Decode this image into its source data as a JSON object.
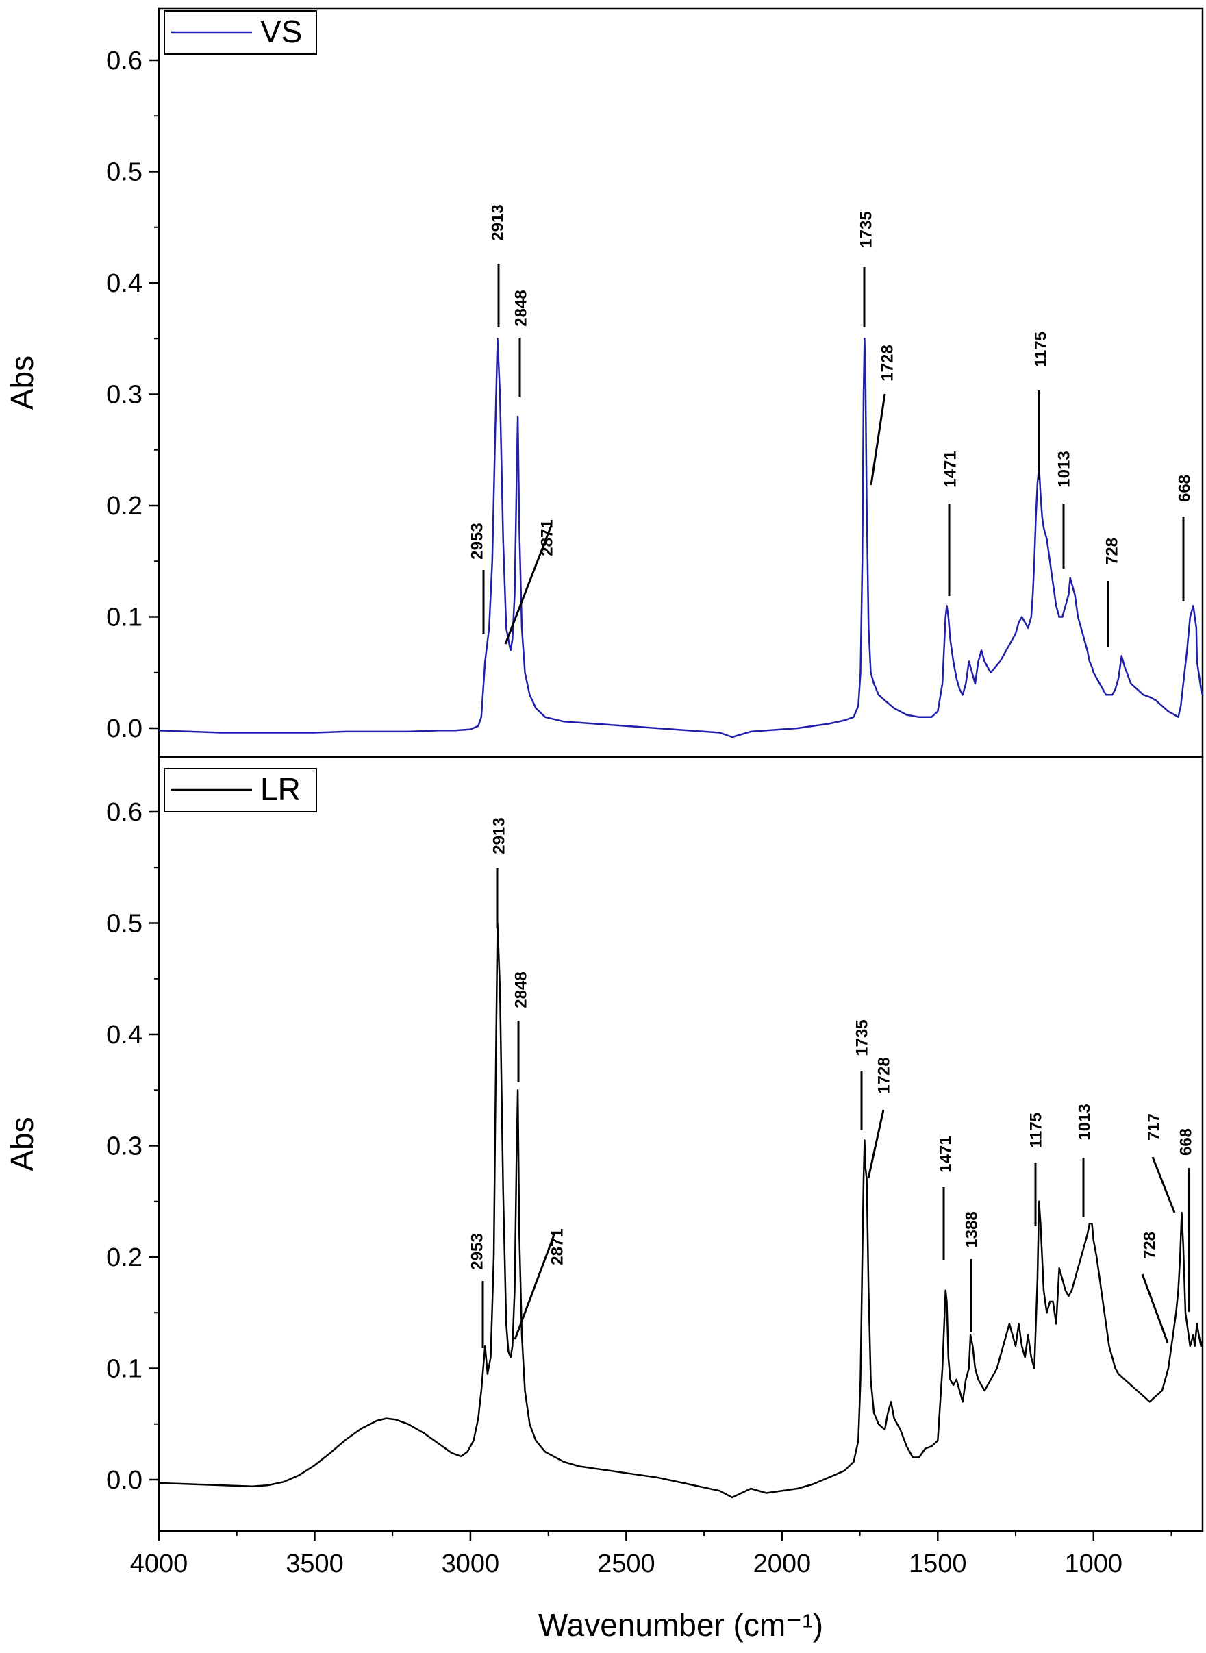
{
  "chart_data": [
    {
      "type": "line",
      "xlabel": "",
      "ylabel": "Abs",
      "xlim": [
        4000,
        650
      ],
      "ylim": [
        -0.03,
        0.65
      ],
      "x_reversed": true,
      "x_ticks": [],
      "y_ticks": [
        "0.0",
        "0.1",
        "0.2",
        "0.3",
        "0.4",
        "0.5",
        "0.6"
      ],
      "legend": "top-left",
      "series": [
        {
          "name": "VS",
          "color": "#1f1fa8",
          "x": [
            4000,
            3900,
            3800,
            3700,
            3600,
            3500,
            3400,
            3300,
            3200,
            3100,
            3050,
            3000,
            2975,
            2965,
            2953,
            2940,
            2930,
            2920,
            2913,
            2905,
            2895,
            2885,
            2875,
            2871,
            2865,
            2858,
            2852,
            2848,
            2843,
            2835,
            2825,
            2810,
            2790,
            2760,
            2700,
            2600,
            2500,
            2400,
            2350,
            2300,
            2200,
            2160,
            2100,
            2000,
            1950,
            1900,
            1850,
            1800,
            1770,
            1755,
            1748,
            1742,
            1738,
            1735,
            1732,
            1728,
            1722,
            1715,
            1705,
            1690,
            1670,
            1640,
            1600,
            1560,
            1520,
            1500,
            1485,
            1475,
            1471,
            1466,
            1460,
            1450,
            1440,
            1430,
            1420,
            1410,
            1400,
            1390,
            1380,
            1370,
            1360,
            1350,
            1330,
            1300,
            1280,
            1260,
            1250,
            1240,
            1230,
            1220,
            1210,
            1200,
            1195,
            1190,
            1185,
            1180,
            1175,
            1170,
            1165,
            1160,
            1150,
            1140,
            1130,
            1120,
            1110,
            1100,
            1090,
            1080,
            1075,
            1070,
            1060,
            1050,
            1040,
            1030,
            1020,
            1013,
            1005,
            1000,
            990,
            980,
            970,
            960,
            950,
            940,
            930,
            920,
            910,
            900,
            880,
            860,
            840,
            820,
            800,
            780,
            760,
            740,
            728,
            720,
            712,
            700,
            690,
            680,
            670,
            668,
            660,
            655,
            650
          ],
          "y": [
            -0.002,
            -0.003,
            -0.004,
            -0.004,
            -0.004,
            -0.004,
            -0.003,
            -0.003,
            -0.003,
            -0.002,
            -0.002,
            -0.001,
            0.002,
            0.01,
            0.06,
            0.09,
            0.15,
            0.27,
            0.35,
            0.3,
            0.17,
            0.09,
            0.075,
            0.07,
            0.08,
            0.12,
            0.22,
            0.28,
            0.18,
            0.09,
            0.05,
            0.03,
            0.018,
            0.01,
            0.006,
            0.004,
            0.002,
            0.0,
            -0.001,
            -0.002,
            -0.004,
            -0.008,
            -0.003,
            -0.001,
            0.0,
            0.002,
            0.004,
            0.007,
            0.01,
            0.02,
            0.05,
            0.15,
            0.3,
            0.35,
            0.31,
            0.2,
            0.09,
            0.05,
            0.04,
            0.03,
            0.025,
            0.018,
            0.012,
            0.01,
            0.01,
            0.015,
            0.04,
            0.1,
            0.11,
            0.1,
            0.08,
            0.06,
            0.045,
            0.035,
            0.03,
            0.04,
            0.06,
            0.05,
            0.04,
            0.06,
            0.07,
            0.06,
            0.05,
            0.06,
            0.07,
            0.08,
            0.085,
            0.095,
            0.1,
            0.095,
            0.09,
            0.1,
            0.12,
            0.15,
            0.19,
            0.22,
            0.235,
            0.21,
            0.19,
            0.18,
            0.17,
            0.15,
            0.13,
            0.11,
            0.1,
            0.1,
            0.11,
            0.12,
            0.135,
            0.13,
            0.12,
            0.1,
            0.09,
            0.08,
            0.07,
            0.06,
            0.055,
            0.05,
            0.045,
            0.04,
            0.035,
            0.03,
            0.03,
            0.03,
            0.035,
            0.045,
            0.065,
            0.055,
            0.04,
            0.035,
            0.03,
            0.028,
            0.025,
            0.02,
            0.015,
            0.012,
            0.01,
            0.02,
            0.04,
            0.07,
            0.1,
            0.11,
            0.09,
            0.06,
            0.045,
            0.035,
            0.03
          ],
          "peak_labels": [
            "2953",
            "2913",
            "2871",
            "2848",
            "1735",
            "1728",
            "1471",
            "1175",
            "1013",
            "728",
            "668"
          ]
        }
      ]
    },
    {
      "type": "line",
      "xlabel": "Wavenumber (cm⁻¹)",
      "ylabel": "Abs",
      "xlim": [
        4000,
        650
      ],
      "ylim": [
        -0.045,
        0.67
      ],
      "x_reversed": true,
      "x_ticks": [
        "4000",
        "3500",
        "3000",
        "2500",
        "2000",
        "1500",
        "1000"
      ],
      "y_ticks": [
        "0.0",
        "0.1",
        "0.2",
        "0.3",
        "0.4",
        "0.5",
        "0.6"
      ],
      "legend": "top-left",
      "series": [
        {
          "name": "LR",
          "color": "#000000",
          "x": [
            4000,
            3900,
            3800,
            3700,
            3650,
            3600,
            3550,
            3500,
            3450,
            3400,
            3350,
            3300,
            3270,
            3240,
            3200,
            3150,
            3100,
            3060,
            3030,
            3010,
            2990,
            2975,
            2965,
            2953,
            2945,
            2935,
            2925,
            2918,
            2913,
            2905,
            2895,
            2885,
            2878,
            2871,
            2865,
            2858,
            2852,
            2848,
            2843,
            2835,
            2825,
            2810,
            2790,
            2760,
            2700,
            2650,
            2600,
            2500,
            2400,
            2300,
            2200,
            2160,
            2100,
            2050,
            2000,
            1950,
            1900,
            1850,
            1800,
            1770,
            1755,
            1748,
            1742,
            1738,
            1735,
            1732,
            1728,
            1722,
            1715,
            1705,
            1690,
            1670,
            1660,
            1650,
            1640,
            1620,
            1600,
            1580,
            1560,
            1540,
            1520,
            1500,
            1485,
            1475,
            1471,
            1466,
            1460,
            1450,
            1440,
            1430,
            1420,
            1410,
            1400,
            1395,
            1388,
            1380,
            1370,
            1360,
            1350,
            1330,
            1310,
            1290,
            1270,
            1260,
            1250,
            1240,
            1230,
            1220,
            1210,
            1200,
            1190,
            1185,
            1180,
            1175,
            1170,
            1165,
            1160,
            1150,
            1140,
            1130,
            1120,
            1110,
            1100,
            1090,
            1080,
            1070,
            1060,
            1050,
            1040,
            1030,
            1020,
            1013,
            1005,
            1000,
            990,
            980,
            970,
            960,
            950,
            940,
            930,
            920,
            900,
            880,
            860,
            840,
            820,
            800,
            780,
            760,
            745,
            735,
            728,
            722,
            717,
            712,
            705,
            700,
            690,
            680,
            675,
            668,
            662,
            655,
            650
          ],
          "y": [
            -0.003,
            -0.004,
            -0.005,
            -0.006,
            -0.005,
            -0.002,
            0.004,
            0.013,
            0.024,
            0.036,
            0.046,
            0.053,
            0.055,
            0.054,
            0.05,
            0.042,
            0.032,
            0.024,
            0.021,
            0.025,
            0.035,
            0.055,
            0.08,
            0.12,
            0.095,
            0.11,
            0.2,
            0.38,
            0.5,
            0.44,
            0.26,
            0.14,
            0.115,
            0.11,
            0.12,
            0.17,
            0.29,
            0.35,
            0.22,
            0.13,
            0.08,
            0.05,
            0.035,
            0.025,
            0.016,
            0.012,
            0.01,
            0.006,
            0.002,
            -0.004,
            -0.01,
            -0.016,
            -0.008,
            -0.012,
            -0.01,
            -0.008,
            -0.004,
            0.002,
            0.008,
            0.016,
            0.035,
            0.09,
            0.2,
            0.27,
            0.305,
            0.28,
            0.27,
            0.17,
            0.09,
            0.06,
            0.05,
            0.045,
            0.06,
            0.07,
            0.055,
            0.045,
            0.03,
            0.02,
            0.02,
            0.028,
            0.03,
            0.035,
            0.1,
            0.17,
            0.16,
            0.11,
            0.09,
            0.085,
            0.09,
            0.08,
            0.07,
            0.09,
            0.1,
            0.13,
            0.12,
            0.1,
            0.09,
            0.085,
            0.08,
            0.09,
            0.1,
            0.12,
            0.14,
            0.13,
            0.12,
            0.14,
            0.12,
            0.11,
            0.13,
            0.11,
            0.1,
            0.14,
            0.18,
            0.25,
            0.23,
            0.2,
            0.17,
            0.15,
            0.16,
            0.16,
            0.14,
            0.19,
            0.18,
            0.17,
            0.165,
            0.17,
            0.18,
            0.19,
            0.2,
            0.21,
            0.22,
            0.23,
            0.23,
            0.215,
            0.2,
            0.18,
            0.16,
            0.14,
            0.12,
            0.11,
            0.1,
            0.095,
            0.09,
            0.085,
            0.08,
            0.075,
            0.07,
            0.075,
            0.08,
            0.1,
            0.13,
            0.15,
            0.17,
            0.2,
            0.24,
            0.21,
            0.15,
            0.14,
            0.12,
            0.13,
            0.12,
            0.14,
            0.13,
            0.12,
            0.125
          ]
        }
      ],
      "peak_labels": [
        "2953",
        "2913",
        "2871",
        "2848",
        "1735",
        "1728",
        "1471",
        "1388",
        "1175",
        "1013",
        "728",
        "717",
        "668"
      ]
    }
  ]
}
